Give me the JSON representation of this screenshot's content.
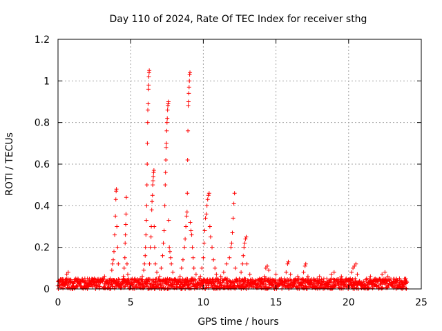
{
  "chart_data": {
    "type": "scatter",
    "title": "Day 110 of 2024, Rate Of TEC Index for receiver sthg",
    "xlabel": "GPS time / hours",
    "ylabel": "ROTI / TECUs",
    "xlim": [
      0,
      25
    ],
    "ylim": [
      0,
      1.2
    ],
    "xticks": [
      0,
      5,
      10,
      15,
      20,
      25
    ],
    "xtick_labels": [
      "0",
      "5",
      "10",
      "15",
      "20",
      "25"
    ],
    "yticks": [
      0,
      0.2,
      0.4,
      0.6,
      0.8,
      1.0,
      1.2
    ],
    "ytick_labels": [
      "0",
      "0.2",
      "0.4",
      "0.6",
      "0.8",
      "1",
      "1.2"
    ],
    "grid": true,
    "marker": "+",
    "color": "#ff0000",
    "series": [
      {
        "name": "ROTI",
        "baseline": {
          "x_start": 0.0,
          "x_end": 24.0,
          "step": 0.05,
          "typical_range": [
            0.0,
            0.05
          ]
        },
        "points": [
          [
            0.6,
            0.07
          ],
          [
            0.7,
            0.08
          ],
          [
            1.3,
            0.04
          ],
          [
            2.5,
            0.05
          ],
          [
            3.2,
            0.06
          ],
          [
            3.7,
            0.09
          ],
          [
            3.75,
            0.12
          ],
          [
            3.8,
            0.14
          ],
          [
            3.85,
            0.18
          ],
          [
            3.9,
            0.26
          ],
          [
            3.95,
            0.35
          ],
          [
            3.98,
            0.43
          ],
          [
            4.0,
            0.47
          ],
          [
            4.02,
            0.48
          ],
          [
            4.05,
            0.3
          ],
          [
            4.1,
            0.2
          ],
          [
            4.15,
            0.12
          ],
          [
            4.5,
            0.06
          ],
          [
            4.55,
            0.1
          ],
          [
            4.6,
            0.15
          ],
          [
            4.62,
            0.22
          ],
          [
            4.64,
            0.26
          ],
          [
            4.66,
            0.31
          ],
          [
            4.68,
            0.36
          ],
          [
            4.7,
            0.44
          ],
          [
            4.75,
            0.12
          ],
          [
            4.8,
            0.07
          ],
          [
            5.8,
            0.06
          ],
          [
            5.9,
            0.09
          ],
          [
            5.95,
            0.12
          ],
          [
            6.0,
            0.16
          ],
          [
            6.02,
            0.2
          ],
          [
            6.05,
            0.26
          ],
          [
            6.08,
            0.33
          ],
          [
            6.1,
            0.4
          ],
          [
            6.12,
            0.5
          ],
          [
            6.14,
            0.6
          ],
          [
            6.15,
            0.7
          ],
          [
            6.17,
            0.8
          ],
          [
            6.18,
            0.86
          ],
          [
            6.2,
            0.89
          ],
          [
            6.22,
            0.96
          ],
          [
            6.24,
            0.98
          ],
          [
            6.25,
            1.02
          ],
          [
            6.27,
            1.04
          ],
          [
            6.28,
            1.05
          ],
          [
            6.3,
            0.12
          ],
          [
            6.35,
            0.2
          ],
          [
            6.4,
            0.25
          ],
          [
            6.42,
            0.3
          ],
          [
            6.45,
            0.38
          ],
          [
            6.47,
            0.42
          ],
          [
            6.5,
            0.45
          ],
          [
            6.52,
            0.5
          ],
          [
            6.54,
            0.52
          ],
          [
            6.56,
            0.54
          ],
          [
            6.58,
            0.56
          ],
          [
            6.6,
            0.57
          ],
          [
            6.62,
            0.3
          ],
          [
            6.65,
            0.2
          ],
          [
            6.7,
            0.12
          ],
          [
            6.8,
            0.08
          ],
          [
            7.0,
            0.06
          ],
          [
            7.1,
            0.1
          ],
          [
            7.2,
            0.16
          ],
          [
            7.25,
            0.22
          ],
          [
            7.3,
            0.28
          ],
          [
            7.35,
            0.4
          ],
          [
            7.38,
            0.5
          ],
          [
            7.4,
            0.56
          ],
          [
            7.42,
            0.62
          ],
          [
            7.44,
            0.68
          ],
          [
            7.46,
            0.7
          ],
          [
            7.48,
            0.76
          ],
          [
            7.5,
            0.8
          ],
          [
            7.52,
            0.82
          ],
          [
            7.54,
            0.86
          ],
          [
            7.56,
            0.88
          ],
          [
            7.58,
            0.89
          ],
          [
            7.6,
            0.9
          ],
          [
            7.62,
            0.33
          ],
          [
            7.66,
            0.2
          ],
          [
            7.7,
            0.18
          ],
          [
            7.75,
            0.15
          ],
          [
            7.8,
            0.12
          ],
          [
            7.9,
            0.08
          ],
          [
            8.4,
            0.06
          ],
          [
            8.5,
            0.1
          ],
          [
            8.6,
            0.14
          ],
          [
            8.7,
            0.2
          ],
          [
            8.75,
            0.24
          ],
          [
            8.8,
            0.3
          ],
          [
            8.85,
            0.35
          ],
          [
            8.88,
            0.37
          ],
          [
            8.9,
            0.46
          ],
          [
            8.92,
            0.62
          ],
          [
            8.94,
            0.76
          ],
          [
            8.96,
            0.88
          ],
          [
            8.98,
            0.9
          ],
          [
            9.0,
            0.94
          ],
          [
            9.02,
            0.97
          ],
          [
            9.04,
            1.0
          ],
          [
            9.06,
            1.03
          ],
          [
            9.08,
            1.04
          ],
          [
            9.1,
            0.32
          ],
          [
            9.15,
            0.28
          ],
          [
            9.2,
            0.26
          ],
          [
            9.25,
            0.2
          ],
          [
            9.3,
            0.15
          ],
          [
            9.35,
            0.1
          ],
          [
            9.5,
            0.07
          ],
          [
            9.8,
            0.06
          ],
          [
            9.9,
            0.1
          ],
          [
            10.0,
            0.15
          ],
          [
            10.05,
            0.22
          ],
          [
            10.1,
            0.28
          ],
          [
            10.15,
            0.34
          ],
          [
            10.2,
            0.36
          ],
          [
            10.25,
            0.4
          ],
          [
            10.3,
            0.43
          ],
          [
            10.35,
            0.45
          ],
          [
            10.4,
            0.46
          ],
          [
            10.45,
            0.3
          ],
          [
            10.5,
            0.25
          ],
          [
            10.6,
            0.2
          ],
          [
            10.7,
            0.14
          ],
          [
            10.8,
            0.1
          ],
          [
            10.9,
            0.07
          ],
          [
            11.2,
            0.06
          ],
          [
            11.4,
            0.08
          ],
          [
            11.6,
            0.12
          ],
          [
            11.8,
            0.15
          ],
          [
            11.9,
            0.2
          ],
          [
            11.95,
            0.22
          ],
          [
            12.0,
            0.27
          ],
          [
            12.05,
            0.34
          ],
          [
            12.1,
            0.41
          ],
          [
            12.15,
            0.46
          ],
          [
            12.2,
            0.1
          ],
          [
            12.6,
            0.08
          ],
          [
            12.7,
            0.12
          ],
          [
            12.75,
            0.16
          ],
          [
            12.8,
            0.2
          ],
          [
            12.85,
            0.22
          ],
          [
            12.9,
            0.24
          ],
          [
            12.95,
            0.25
          ],
          [
            13.0,
            0.12
          ],
          [
            13.2,
            0.07
          ],
          [
            14.2,
            0.06
          ],
          [
            14.3,
            0.1
          ],
          [
            14.4,
            0.11
          ],
          [
            14.5,
            0.09
          ],
          [
            15.0,
            0.07
          ],
          [
            15.7,
            0.08
          ],
          [
            15.8,
            0.12
          ],
          [
            15.85,
            0.13
          ],
          [
            16.0,
            0.07
          ],
          [
            16.5,
            0.06
          ],
          [
            16.9,
            0.08
          ],
          [
            17.0,
            0.11
          ],
          [
            17.05,
            0.12
          ],
          [
            17.2,
            0.06
          ],
          [
            18.0,
            0.06
          ],
          [
            18.8,
            0.07
          ],
          [
            19.0,
            0.08
          ],
          [
            19.5,
            0.06
          ],
          [
            20.2,
            0.08
          ],
          [
            20.3,
            0.1
          ],
          [
            20.4,
            0.11
          ],
          [
            20.5,
            0.12
          ],
          [
            20.6,
            0.07
          ],
          [
            21.5,
            0.06
          ],
          [
            22.3,
            0.07
          ],
          [
            22.5,
            0.08
          ],
          [
            22.7,
            0.06
          ],
          [
            23.5,
            0.05
          ],
          [
            23.9,
            0.04
          ]
        ]
      }
    ]
  }
}
